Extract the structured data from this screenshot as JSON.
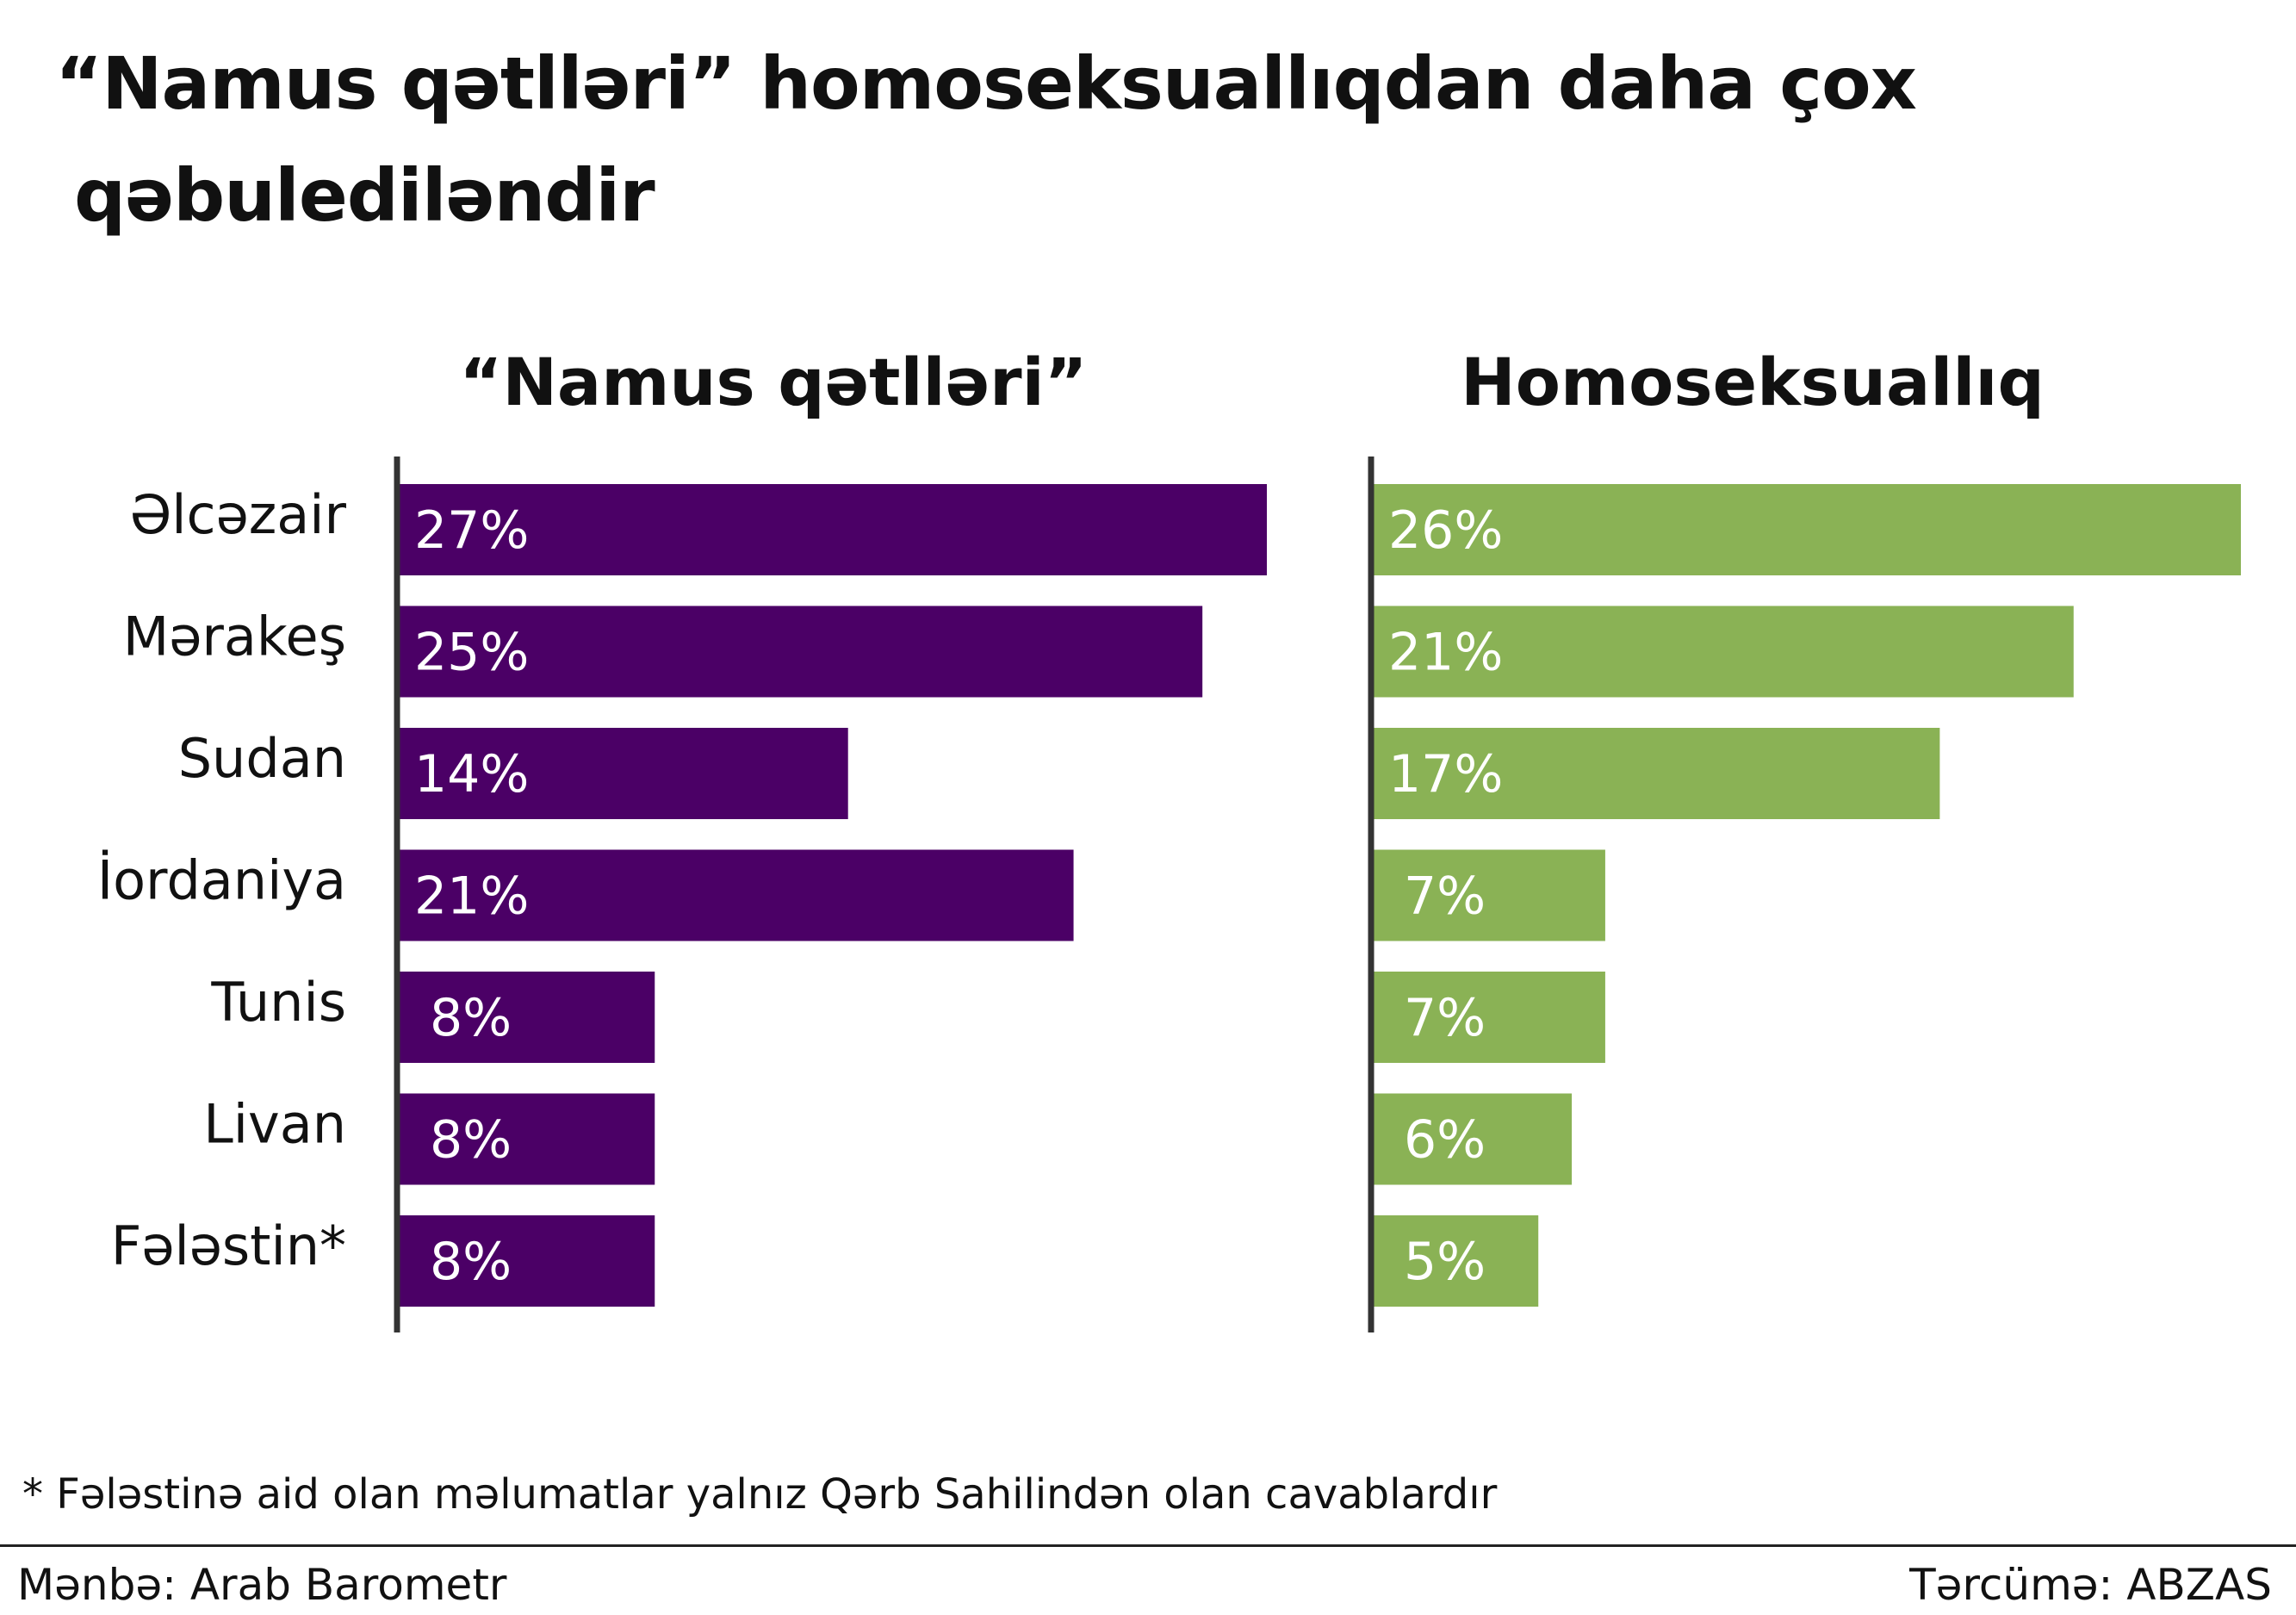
{
  "title": {
    "line1": "“Namus qətlləri” homoseksuallıqdan daha çox",
    "line2": "qəbulediləndir"
  },
  "colors": {
    "honor": "#4b0066",
    "homo": "#8ab255",
    "axis": "#333333"
  },
  "chart_data": [
    {
      "type": "bar",
      "orientation": "horizontal",
      "title": "“Namus qətlləri”",
      "categories": [
        "Əlcəzair",
        "Mərakeş",
        "Sudan",
        "İordaniya",
        "Tunis",
        "Livan",
        "Fələstin*"
      ],
      "values": [
        27,
        25,
        14,
        21,
        8,
        8,
        8
      ],
      "labels": [
        "27%",
        "25%",
        "14%",
        "21%",
        "8%",
        "8%",
        "8%"
      ],
      "xlim": [
        0,
        30
      ],
      "grid": false
    },
    {
      "type": "bar",
      "orientation": "horizontal",
      "title": "Homoseksuallıq",
      "categories": [
        "Əlcəzair",
        "Mərakeş",
        "Sudan",
        "İordaniya",
        "Tunis",
        "Livan",
        "Fələstin*"
      ],
      "values": [
        26,
        21,
        17,
        7,
        7,
        6,
        5
      ],
      "labels": [
        "26%",
        "21%",
        "17%",
        "7%",
        "7%",
        "6%",
        "5%"
      ],
      "xlim": [
        0,
        30
      ],
      "grid": false
    }
  ],
  "footnote": "* Fələstinə aid olan məlumatlar yalnız Qərb Sahilindən olan cavablardır",
  "source": "Mənbə: Arab Barometr",
  "credit": "Tərcümə: ABZAS"
}
